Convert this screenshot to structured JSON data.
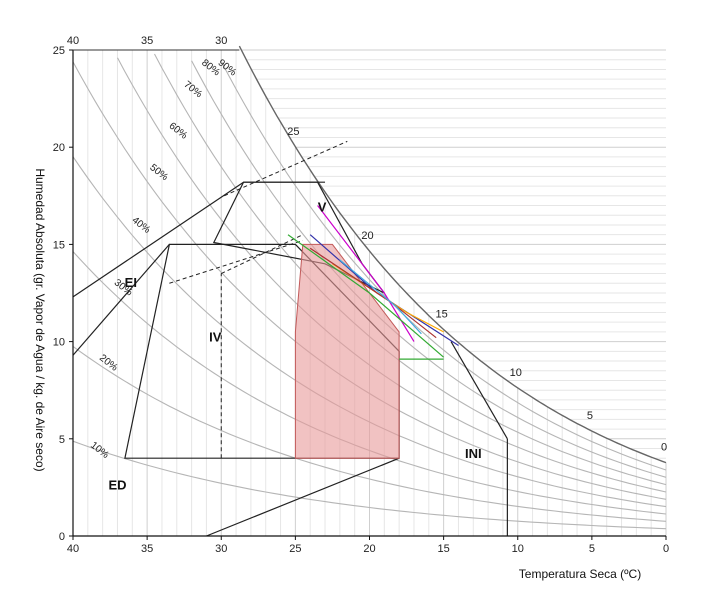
{
  "chart_data": {
    "type": "psychrometric",
    "x_reversed": true,
    "xlabel": "Temperatura Seca (ºC)",
    "ylabel": "Humedad Absoluta (gr. Vapor de Agua / kg. de Aire seco)",
    "xlim": [
      40,
      0
    ],
    "ylim": [
      0,
      25
    ],
    "x_ticks": [
      40,
      35,
      30,
      25,
      20,
      15,
      10,
      5,
      0
    ],
    "y_ticks": [
      0,
      5,
      10,
      15,
      20,
      25
    ],
    "top_ticks": [
      "40",
      "35",
      "30"
    ],
    "grid": true,
    "saturation_labels": [
      "25",
      "20",
      "15",
      "10",
      "5",
      "0"
    ],
    "rh_labels": [
      "90%",
      "80%",
      "70%",
      "60%",
      "50%",
      "40%",
      "30%",
      "20%",
      "10%"
    ],
    "rh_values": [
      90,
      80,
      70,
      60,
      50,
      40,
      30,
      20,
      10
    ],
    "zones": [
      {
        "label": "V",
        "points": [
          [
            28.5,
            18.1
          ],
          [
            22,
            18.1
          ],
          [
            19,
            14
          ],
          [
            19,
            12
          ],
          [
            23.5,
            14
          ],
          [
            30,
            15
          ]
        ]
      },
      {
        "label": "IV",
        "points": [
          [
            36.5,
            4
          ],
          [
            30.5,
            4
          ],
          [
            26,
            4
          ],
          [
            25,
            4.5
          ],
          [
            29,
            15
          ],
          [
            33.5,
            15
          ]
        ]
      },
      {
        "label": "EI",
        "points": []
      },
      {
        "label": "ED",
        "points": []
      },
      {
        "label": "INI",
        "points": []
      }
    ],
    "comfort_zone": [
      [
        25,
        4
      ],
      [
        18,
        4
      ],
      [
        18,
        9
      ],
      [
        19,
        10.5
      ],
      [
        22.5,
        14.8
      ],
      [
        24.5,
        14.8
      ],
      [
        25.5,
        9.6
      ],
      [
        25,
        10
      ]
    ],
    "climate_lines": [
      {
        "color": "#cc00cc",
        "points": [
          [
            23.5,
            17
          ],
          [
            19,
            12.5
          ],
          [
            17,
            10
          ]
        ]
      },
      {
        "color": "#3333aa",
        "points": [
          [
            24,
            15.5
          ],
          [
            19.5,
            12.5
          ],
          [
            14,
            9.8
          ]
        ]
      },
      {
        "color": "#ffaa00",
        "points": [
          [
            22.5,
            14
          ],
          [
            17.5,
            11.5
          ],
          [
            15,
            10.5
          ]
        ]
      },
      {
        "color": "#33aa33",
        "points": [
          [
            25.5,
            15.5
          ],
          [
            20,
            12.5
          ],
          [
            15,
            9.2
          ]
        ]
      },
      {
        "color": "#aa3333",
        "points": [
          [
            24,
            14.8
          ],
          [
            18.5,
            12
          ],
          [
            15.5,
            10.2
          ]
        ]
      },
      {
        "color": "#44aadd",
        "points": [
          [
            22,
            14.2
          ],
          [
            18.2,
            11.8
          ],
          [
            16.5,
            10.4
          ]
        ]
      }
    ],
    "colors": {
      "rh_curve": "#b5b5b5",
      "saturation": "#666666",
      "grid_minor": "#e6e6e6",
      "grid_major": "#cfcfcf",
      "comfort_fill": "#e89a9a",
      "comfort_stroke": "#c25a5a",
      "zone_line": "#222222"
    }
  }
}
